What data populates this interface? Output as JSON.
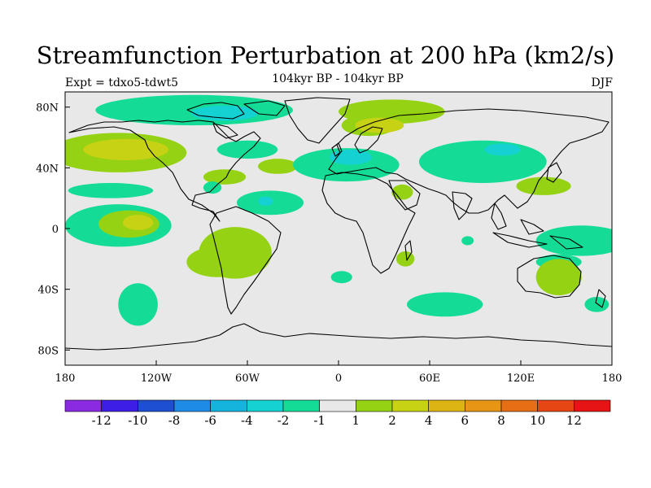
{
  "title": "Streamfunction Perturbation at 200 hPa (km2/s)",
  "subtitle": "104kyr BP - 104kyr BP",
  "expt_label": "Expt = tdxo5-tdwt5",
  "season": "DJF",
  "map": {
    "projection": "cylindrical-equidistant",
    "lon_range": [
      -180,
      180
    ],
    "lat_range": [
      -90,
      90
    ],
    "x_ticks": [
      {
        "value": -180,
        "label": "180"
      },
      {
        "value": -120,
        "label": "120W"
      },
      {
        "value": -60,
        "label": "60W"
      },
      {
        "value": 0,
        "label": "0"
      },
      {
        "value": 60,
        "label": "60E"
      },
      {
        "value": 120,
        "label": "120E"
      },
      {
        "value": 180,
        "label": "180"
      }
    ],
    "y_ticks": [
      {
        "value": 80,
        "label": "80N"
      },
      {
        "value": 40,
        "label": "40N"
      },
      {
        "value": 0,
        "label": "0"
      },
      {
        "value": -40,
        "label": "40S"
      },
      {
        "value": -80,
        "label": "80S"
      }
    ],
    "background_color": "#e8e8e8",
    "coastline_color": "#000000"
  },
  "colorbar": {
    "colors": [
      "#8a2be2",
      "#3c1ee6",
      "#1e4ed2",
      "#1e8ce6",
      "#14b4dc",
      "#14d2d2",
      "#14dc96",
      "#e8e8e8",
      "#96d214",
      "#c8d214",
      "#dcb414",
      "#e69614",
      "#e66e14",
      "#e64614",
      "#e61414"
    ],
    "labels": [
      "-12",
      "-10",
      "-8",
      "-6",
      "-4",
      "-2",
      "-1",
      "1",
      "2",
      "4",
      "6",
      "8",
      "10",
      "12"
    ]
  },
  "contour_fills": [
    {
      "level": "-1",
      "color": "#14dc96",
      "lon": -95,
      "lat": 78,
      "rx": 65,
      "ry": 10
    },
    {
      "level": "-2",
      "color": "#14d2d2",
      "lon": -75,
      "lat": 76,
      "rx": 22,
      "ry": 5
    },
    {
      "level": "-1",
      "color": "#14dc96",
      "lon": -60,
      "lat": 52,
      "rx": 20,
      "ry": 6
    },
    {
      "level": "2",
      "color": "#96d214",
      "lon": -145,
      "lat": 50,
      "rx": 45,
      "ry": 13
    },
    {
      "level": "4",
      "color": "#c8d214",
      "lon": -140,
      "lat": 52,
      "rx": 28,
      "ry": 7
    },
    {
      "level": "-1",
      "color": "#14dc96",
      "lon": -150,
      "lat": 25,
      "rx": 28,
      "ry": 5
    },
    {
      "level": "-1",
      "color": "#14dc96",
      "lon": -145,
      "lat": 2,
      "rx": 35,
      "ry": 14
    },
    {
      "level": "2",
      "color": "#96d214",
      "lon": -138,
      "lat": 3,
      "rx": 20,
      "ry": 9
    },
    {
      "level": "4",
      "color": "#c8d214",
      "lon": -132,
      "lat": 4,
      "rx": 10,
      "ry": 5
    },
    {
      "level": "2",
      "color": "#96d214",
      "lon": -75,
      "lat": 34,
      "rx": 14,
      "ry": 5
    },
    {
      "level": "2",
      "color": "#96d214",
      "lon": -40,
      "lat": 41,
      "rx": 13,
      "ry": 5
    },
    {
      "level": "-1",
      "color": "#14dc96",
      "lon": -45,
      "lat": 17,
      "rx": 22,
      "ry": 8
    },
    {
      "level": "-2",
      "color": "#14d2d2",
      "lon": -48,
      "lat": 18,
      "rx": 5,
      "ry": 3
    },
    {
      "level": "-1",
      "color": "#14dc96",
      "lon": -83,
      "lat": 27,
      "rx": 6,
      "ry": 4
    },
    {
      "level": "2",
      "color": "#96d214",
      "lon": -68,
      "lat": -16,
      "rx": 24,
      "ry": 17
    },
    {
      "level": "2",
      "color": "#96d214",
      "lon": -80,
      "lat": -22,
      "rx": 20,
      "ry": 10
    },
    {
      "level": "-1",
      "color": "#14dc96",
      "lon": -132,
      "lat": -50,
      "rx": 13,
      "ry": 14
    },
    {
      "level": "-1",
      "color": "#14dc96",
      "lon": 5,
      "lat": 42,
      "rx": 35,
      "ry": 11
    },
    {
      "level": "-2",
      "color": "#14d2d2",
      "lon": 8,
      "lat": 47,
      "rx": 14,
      "ry": 5
    },
    {
      "level": "2",
      "color": "#96d214",
      "lon": 35,
      "lat": 77,
      "rx": 35,
      "ry": 8
    },
    {
      "level": "2",
      "color": "#96d214",
      "lon": 20,
      "lat": 68,
      "rx": 18,
      "ry": 7
    },
    {
      "level": "4",
      "color": "#c8d214",
      "lon": 27,
      "lat": 68,
      "rx": 16,
      "ry": 5
    },
    {
      "level": "2",
      "color": "#96d214",
      "lon": 42,
      "lat": 24,
      "rx": 7,
      "ry": 5
    },
    {
      "level": "-1",
      "color": "#14dc96",
      "lon": 95,
      "lat": 44,
      "rx": 42,
      "ry": 14
    },
    {
      "level": "-2",
      "color": "#14d2d2",
      "lon": 108,
      "lat": 52,
      "rx": 12,
      "ry": 4
    },
    {
      "level": "2",
      "color": "#96d214",
      "lon": 135,
      "lat": 28,
      "rx": 18,
      "ry": 6
    },
    {
      "level": "-1",
      "color": "#14dc96",
      "lon": 160,
      "lat": -8,
      "rx": 30,
      "ry": 10
    },
    {
      "level": "-1",
      "color": "#14dc96",
      "lon": 145,
      "lat": -22,
      "rx": 15,
      "ry": 5
    },
    {
      "level": "2",
      "color": "#96d214",
      "lon": 145,
      "lat": -32,
      "rx": 15,
      "ry": 12
    },
    {
      "level": "-1",
      "color": "#14dc96",
      "lon": 70,
      "lat": -50,
      "rx": 25,
      "ry": 8
    },
    {
      "level": "-1",
      "color": "#14dc96",
      "lon": 2,
      "lat": -32,
      "rx": 7,
      "ry": 4
    },
    {
      "level": "2",
      "color": "#96d214",
      "lon": 44,
      "lat": -20,
      "rx": 6,
      "ry": 5
    },
    {
      "level": "-1",
      "color": "#14dc96",
      "lon": 85,
      "lat": -8,
      "rx": 4,
      "ry": 3
    },
    {
      "level": "-1",
      "color": "#14dc96",
      "lon": 170,
      "lat": -50,
      "rx": 8,
      "ry": 5
    }
  ]
}
